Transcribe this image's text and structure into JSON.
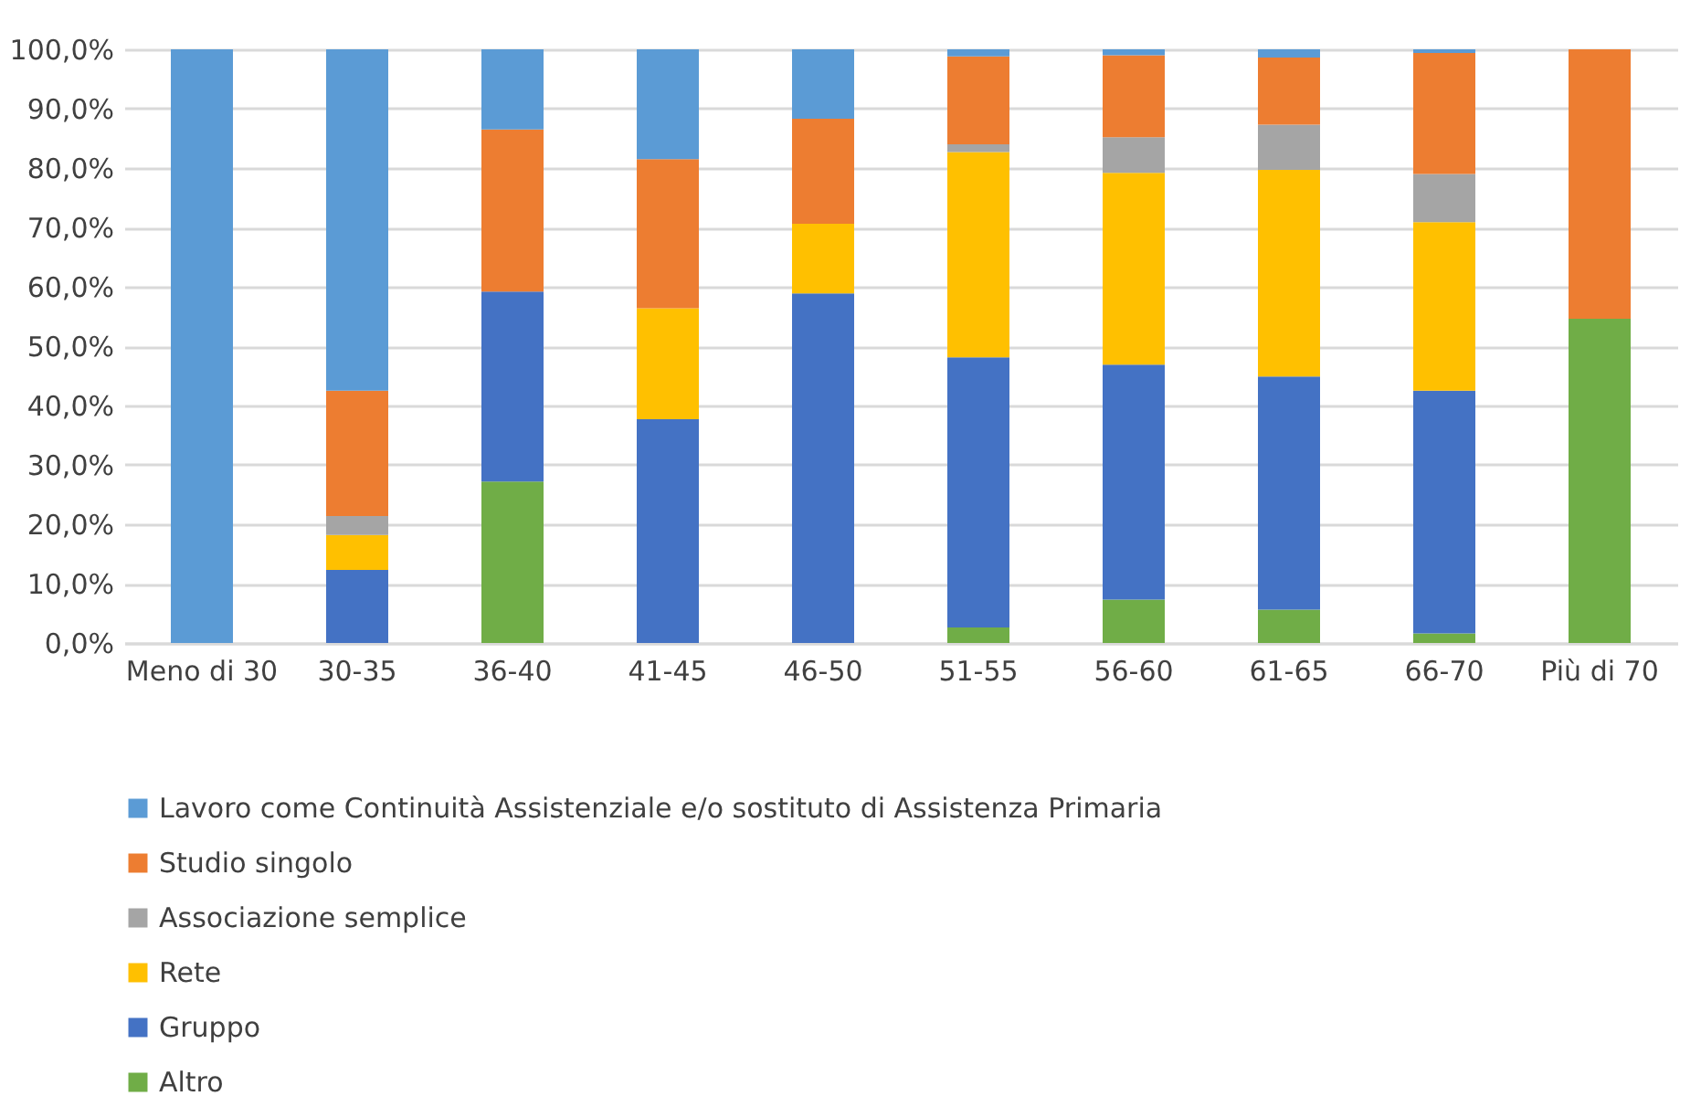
{
  "chart_data": {
    "type": "bar",
    "stacked": true,
    "categories": [
      "Meno di 30",
      "30-35",
      "36-40",
      "41-45",
      "46-50",
      "51-55",
      "56-60",
      "61-65",
      "66-70",
      "Più di 70"
    ],
    "series": [
      {
        "name": "Altro",
        "color": "#70ad47",
        "values": [
          null,
          null,
          27.2,
          null,
          null,
          2.6,
          7.3,
          5.6,
          1.6,
          54.6
        ]
      },
      {
        "name": "Gruppo",
        "color": "#4472c4",
        "values": [
          null,
          12.3,
          32.0,
          37.7,
          58.9,
          45.5,
          39.6,
          39.3,
          40.9,
          null
        ]
      },
      {
        "name": "Rete",
        "color": "#ffc000",
        "values": [
          null,
          5.9,
          null,
          18.7,
          11.7,
          34.6,
          32.3,
          34.8,
          28.4,
          null
        ]
      },
      {
        "name": "Associazione semplice",
        "color": "#a5a5a5",
        "values": [
          null,
          3.2,
          null,
          null,
          null,
          1.3,
          6.0,
          7.6,
          8.1,
          null
        ]
      },
      {
        "name": "Studio singolo",
        "color": "#ed7d31",
        "values": [
          null,
          21.1,
          27.3,
          25.1,
          17.7,
          14.8,
          13.8,
          11.3,
          20.4,
          45.4
        ]
      },
      {
        "name": "Lavoro come Continuità Assistenziale e/o sostituto di Assistenza Primaria",
        "color": "#5b9bd5",
        "values": [
          100,
          57.5,
          13.5,
          18.5,
          11.7,
          1.2,
          1.0,
          1.4,
          0.6,
          null
        ]
      }
    ],
    "ylim": [
      0,
      100
    ],
    "yticks": [
      {
        "value": 0,
        "label": "0,0%"
      },
      {
        "value": 10,
        "label": "10,0%"
      },
      {
        "value": 20,
        "label": "20,0%"
      },
      {
        "value": 30,
        "label": "30,0%"
      },
      {
        "value": 40,
        "label": "40,0%"
      },
      {
        "value": 50,
        "label": "50,0%"
      },
      {
        "value": 60,
        "label": "60,0%"
      },
      {
        "value": 70,
        "label": "70,0%"
      },
      {
        "value": 80,
        "label": "80,0%"
      },
      {
        "value": 90,
        "label": "90,0%"
      },
      {
        "value": 100,
        "label": "100,0%"
      }
    ],
    "grid": "y",
    "legend": "bottom"
  }
}
